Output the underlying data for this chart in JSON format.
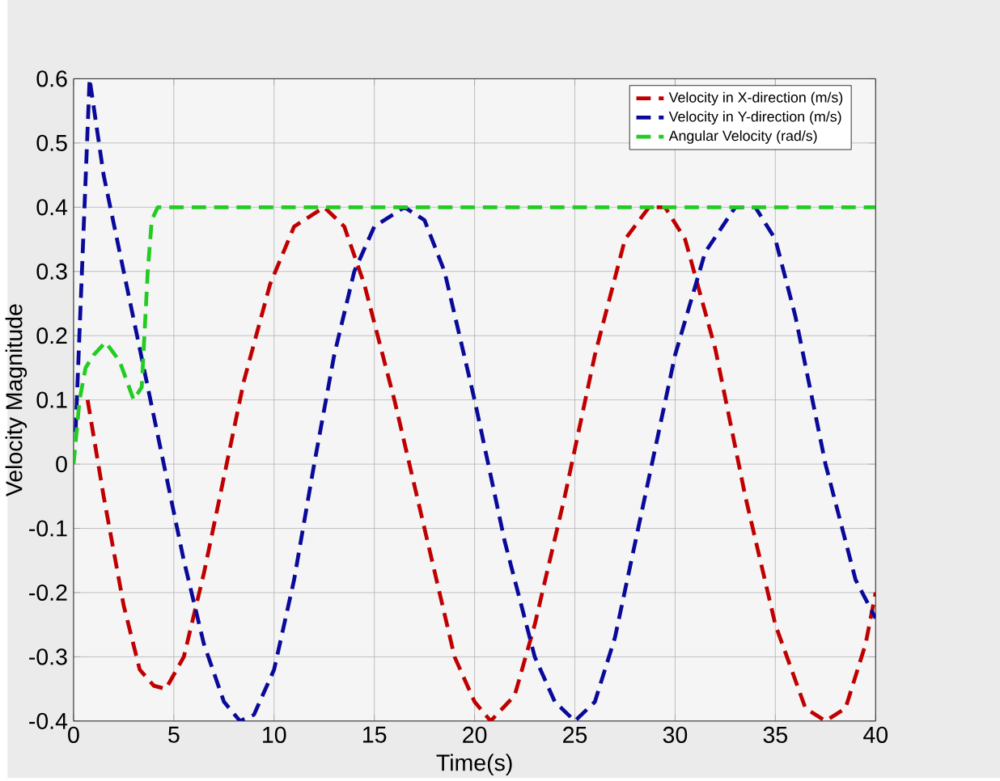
{
  "chart_data": {
    "type": "line",
    "xlabel": "Time(s)",
    "ylabel": "Velocity Magnitude",
    "xlim": [
      0,
      40
    ],
    "ylim": [
      -0.4,
      0.6
    ],
    "xticks": [
      0,
      5,
      10,
      15,
      20,
      25,
      30,
      35,
      40
    ],
    "yticks": [
      -0.4,
      -0.3,
      -0.2,
      -0.1,
      0,
      0.1,
      0.2,
      0.3,
      0.4,
      0.5,
      0.6
    ],
    "grid": true,
    "legend": "top right",
    "line_style": "dashed",
    "marker": "none",
    "series": [
      {
        "name": "Velocity in X-direction (m/s)",
        "color": "#c00000",
        "x": [
          0.7,
          1.5,
          2.5,
          3.3,
          4,
          4.6,
          5.5,
          6.5,
          7.5,
          8.5,
          9.8,
          11,
          12.5,
          13.5,
          14.5,
          16,
          17.5,
          19,
          20,
          20.8,
          22,
          23,
          24.5,
          26,
          27.5,
          28.7,
          29.5,
          30.5,
          32,
          33.5,
          35,
          36.5,
          37.5,
          38.5,
          39.5,
          40
        ],
        "values": [
          0.1,
          -0.05,
          -0.22,
          -0.32,
          -0.345,
          -0.35,
          -0.3,
          -0.17,
          -0.02,
          0.13,
          0.28,
          0.37,
          0.4,
          0.37,
          0.28,
          0.1,
          -0.1,
          -0.3,
          -0.37,
          -0.4,
          -0.36,
          -0.25,
          -0.05,
          0.17,
          0.35,
          0.4,
          0.4,
          0.35,
          0.18,
          -0.05,
          -0.25,
          -0.38,
          -0.4,
          -0.38,
          -0.28,
          -0.2
        ]
      },
      {
        "name": "Velocity in Y-direction (m/s)",
        "color": "#0a0a9a",
        "x": [
          0.1,
          0.8,
          1.5,
          2.5,
          3.5,
          4.5,
          5.5,
          6.5,
          7.5,
          8.3,
          9,
          10,
          11,
          12,
          13,
          14,
          15,
          16.5,
          17.5,
          18.5,
          20,
          21.5,
          23,
          24,
          25,
          26,
          27,
          28.5,
          30,
          31.5,
          33,
          34,
          35,
          36,
          37.5,
          39,
          40
        ],
        "values": [
          0.05,
          0.6,
          0.45,
          0.3,
          0.15,
          0.0,
          -0.15,
          -0.28,
          -0.37,
          -0.4,
          -0.39,
          -0.32,
          -0.18,
          0.0,
          0.17,
          0.3,
          0.37,
          0.4,
          0.38,
          0.3,
          0.1,
          -0.12,
          -0.3,
          -0.37,
          -0.4,
          -0.37,
          -0.27,
          -0.05,
          0.17,
          0.33,
          0.4,
          0.4,
          0.35,
          0.23,
          0.0,
          -0.18,
          -0.24
        ]
      },
      {
        "name": "Angular Velocity (rad/s)",
        "color": "#22cc22",
        "x": [
          0,
          0.3,
          0.6,
          1,
          1.6,
          2.3,
          3,
          3.4,
          3.7,
          3.9,
          4.2,
          40
        ],
        "values": [
          0,
          0.1,
          0.15,
          0.17,
          0.19,
          0.16,
          0.1,
          0.12,
          0.3,
          0.38,
          0.4,
          0.4
        ]
      }
    ]
  }
}
